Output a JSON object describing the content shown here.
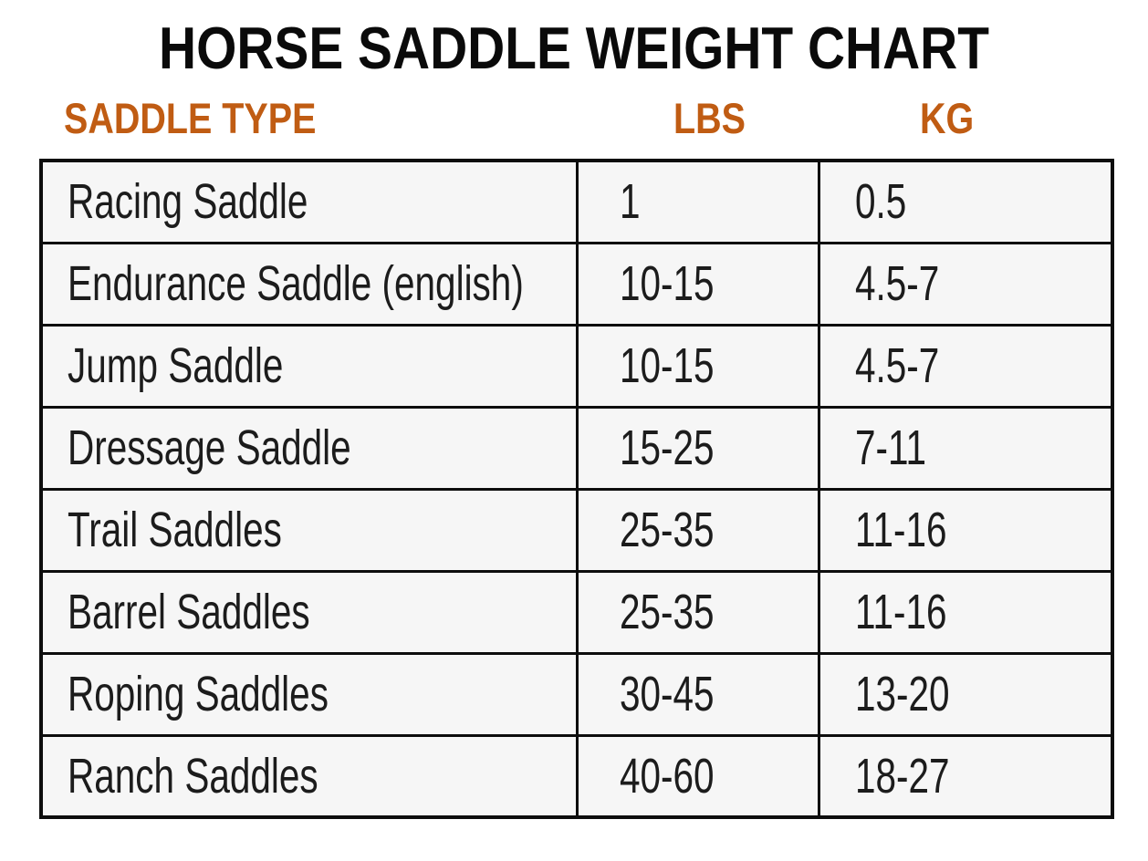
{
  "title": "HORSE SADDLE WEIGHT CHART",
  "colors": {
    "accent": "#c05c13",
    "cell_bg": "#f6f6f6",
    "border": "#0d0d0d",
    "title_color": "#0a0a0a",
    "text_color": "#1c1c1c",
    "page_bg": "#ffffff"
  },
  "chart_data": {
    "type": "table",
    "title": "HORSE SADDLE WEIGHT CHART",
    "columns": [
      "SADDLE TYPE",
      "LBS",
      "KG"
    ],
    "rows": [
      [
        "Racing Saddle",
        "1",
        "0.5"
      ],
      [
        "Endurance Saddle (english)",
        "10-15",
        "4.5-7"
      ],
      [
        "Jump Saddle",
        "10-15",
        "4.5-7"
      ],
      [
        "Dressage Saddle",
        "15-25",
        "7-11"
      ],
      [
        "Trail Saddles",
        "25-35",
        "11-16"
      ],
      [
        "Barrel Saddles",
        "25-35",
        "11-16"
      ],
      [
        "Roping Saddles",
        "30-45",
        "13-20"
      ],
      [
        "Ranch Saddles",
        "40-60",
        "18-27"
      ]
    ],
    "layout": {
      "grid": "full-borders",
      "header_position": "above-table",
      "legend": "none"
    }
  }
}
